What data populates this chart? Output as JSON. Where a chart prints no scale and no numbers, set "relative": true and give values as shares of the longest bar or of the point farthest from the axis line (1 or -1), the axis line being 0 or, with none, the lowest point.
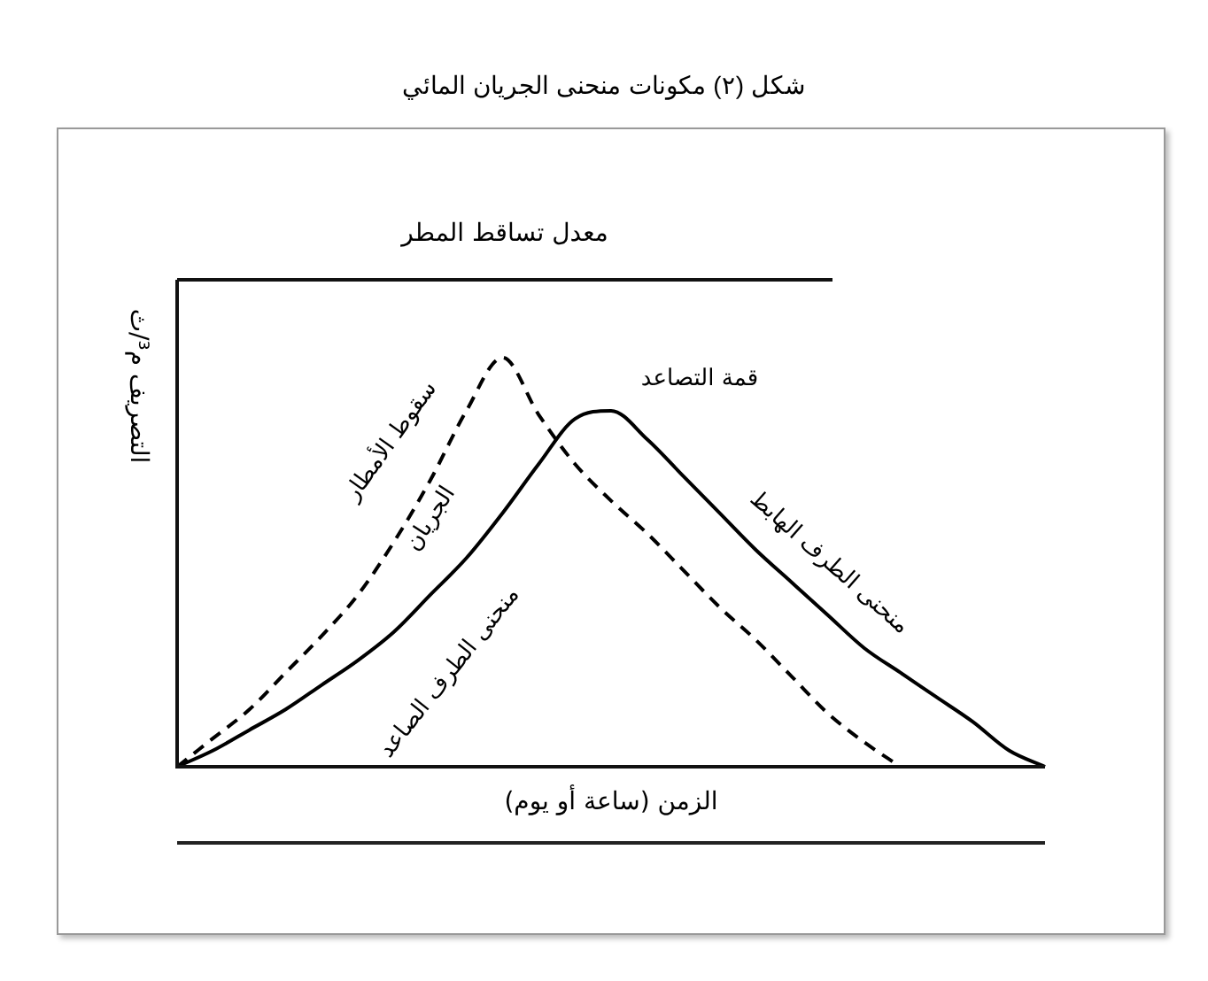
{
  "chart_data": {
    "type": "line",
    "title": "شكل (٢) مكونات منحنى الجريان المائي",
    "subtitle": "معدل تساقط المطر",
    "xlabel": "الزمن (ساعة أو يوم)",
    "ylabel": "التصريف م³/ث",
    "relative": true,
    "legend": false,
    "marker": "none",
    "categories": [
      null,
      null,
      null,
      null,
      null,
      null,
      null,
      null,
      null,
      null,
      null,
      null,
      null,
      null,
      null,
      null,
      null,
      null,
      null,
      null,
      null,
      null,
      null,
      null,
      null
    ],
    "series": [
      {
        "name": "سقوط الأمطار",
        "color": "#000000",
        "line_style": "dashed",
        "values": [
          0,
          0.07,
          0.14,
          0.23,
          0.32,
          0.42,
          0.55,
          0.7,
          0.87,
          1,
          0.86,
          0.74,
          0.65,
          0.57,
          0.48,
          0.39,
          0.31,
          0.22,
          0.13,
          0.06,
          0,
          null,
          null,
          null,
          null
        ]
      },
      {
        "name": "الجريان",
        "color": "#000000",
        "line_style": "solid",
        "values": [
          0,
          0.04,
          0.09,
          0.14,
          0.2,
          0.26,
          0.33,
          0.42,
          0.51,
          0.62,
          0.74,
          0.85,
          0.87,
          0.8,
          0.71,
          0.62,
          0.53,
          0.45,
          0.37,
          0.29,
          0.23,
          0.17,
          0.11,
          0.04,
          0
        ]
      }
    ],
    "annotations": [
      "منحنى الطرف الصاعد",
      "منحنى الطرف الهابط",
      "قمة التصاعد"
    ]
  }
}
